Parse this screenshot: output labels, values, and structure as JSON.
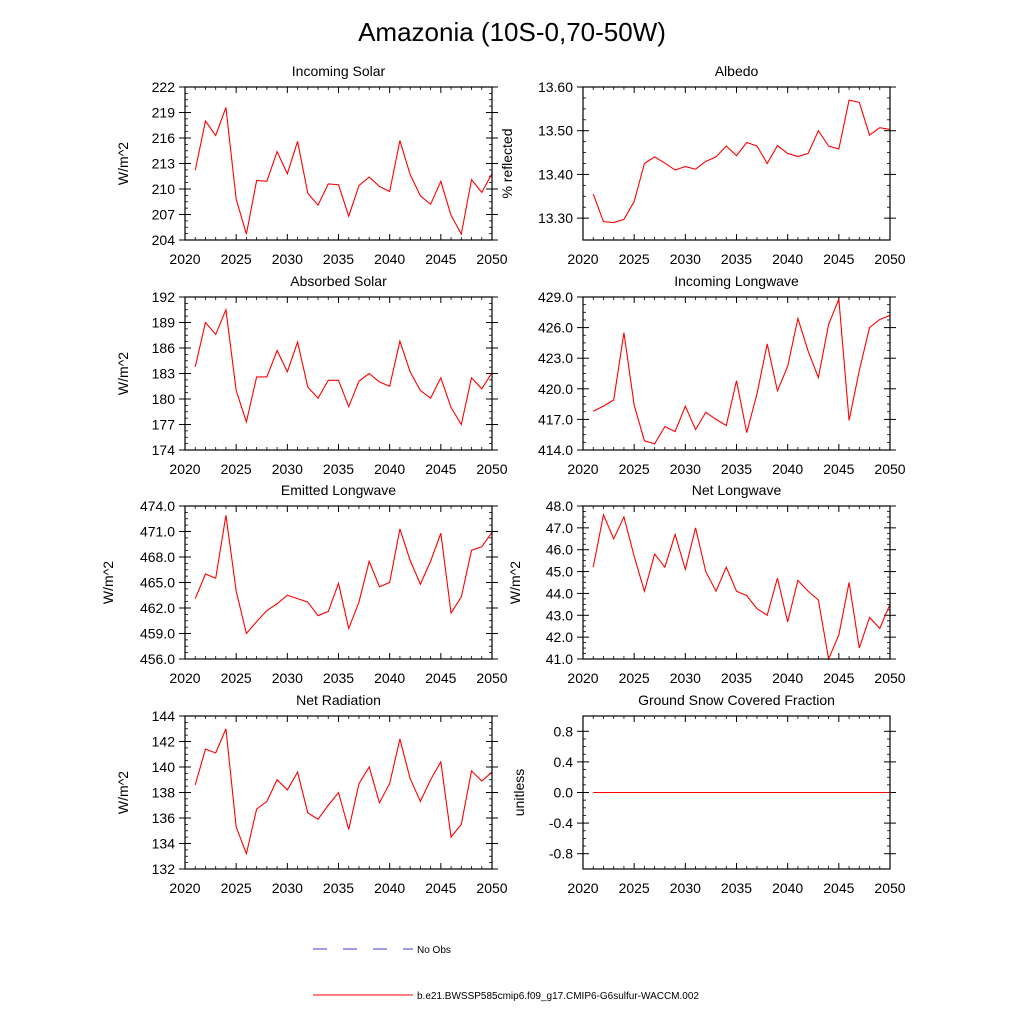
{
  "title": "Amazonia (10S-0,70-50W)",
  "legend": [
    {
      "label": "No Obs",
      "color": "#3b3bd6",
      "style": "dashed"
    },
    {
      "label": "b.e21.BWSSP585cmip6.f09_g17.CMIP6-G6sulfur-WACCM.002",
      "color": "#ff0000",
      "style": "solid"
    }
  ],
  "chart_data": [
    {
      "type": "line",
      "title": "Incoming Solar",
      "ylabel": "W/m^2",
      "xlabel": "",
      "xlim": [
        2020,
        2050
      ],
      "xticks": [
        2020,
        2025,
        2030,
        2035,
        2040,
        2045,
        2050
      ],
      "xtick_labels": [
        "2020",
        "2025",
        "2030",
        "2035",
        "2040",
        "2045",
        "2050"
      ],
      "ylim": [
        204,
        222
      ],
      "yticks": [
        204,
        207,
        210,
        213,
        216,
        219,
        222
      ],
      "ytick_labels": [
        "204",
        "207",
        "210",
        "213",
        "216",
        "219",
        "222"
      ],
      "grid": false,
      "x": [
        2021,
        2022,
        2023,
        2024,
        2025,
        2026,
        2027,
        2028,
        2029,
        2030,
        2031,
        2032,
        2033,
        2034,
        2035,
        2036,
        2037,
        2038,
        2039,
        2040,
        2041,
        2042,
        2043,
        2044,
        2045,
        2046,
        2047,
        2048,
        2049,
        2050
      ],
      "series": [
        {
          "color": "#ff0000",
          "values": [
            212.2,
            218.0,
            216.3,
            219.6,
            208.8,
            204.7,
            211.0,
            210.9,
            214.4,
            211.8,
            215.6,
            209.5,
            208.1,
            210.6,
            210.5,
            206.8,
            210.4,
            211.4,
            210.3,
            209.7,
            215.7,
            211.7,
            209.2,
            208.2,
            210.9,
            206.9,
            204.7,
            211.1,
            209.6,
            211.8
          ]
        }
      ]
    },
    {
      "type": "line",
      "title": "Albedo",
      "ylabel": "% reflected",
      "xlabel": "",
      "xlim": [
        2020,
        2050
      ],
      "xticks": [
        2020,
        2025,
        2030,
        2035,
        2040,
        2045,
        2050
      ],
      "xtick_labels": [
        "2020",
        "2025",
        "2030",
        "2035",
        "2040",
        "2045",
        "2050"
      ],
      "ylim": [
        13.25,
        13.6
      ],
      "yticks": [
        13.3,
        13.4,
        13.5,
        13.6
      ],
      "ytick_labels": [
        "13.30",
        "13.40",
        "13.50",
        "13.60"
      ],
      "grid": false,
      "x": [
        2021,
        2022,
        2023,
        2024,
        2025,
        2026,
        2027,
        2028,
        2029,
        2030,
        2031,
        2032,
        2033,
        2034,
        2035,
        2036,
        2037,
        2038,
        2039,
        2040,
        2041,
        2042,
        2043,
        2044,
        2045,
        2046,
        2047,
        2048,
        2049,
        2050
      ],
      "series": [
        {
          "color": "#ff0000",
          "values": [
            13.355,
            13.292,
            13.29,
            13.297,
            13.338,
            13.425,
            13.44,
            13.426,
            13.41,
            13.418,
            13.412,
            13.43,
            13.44,
            13.465,
            13.443,
            13.473,
            13.465,
            13.425,
            13.466,
            13.448,
            13.441,
            13.448,
            13.5,
            13.465,
            13.458,
            13.57,
            13.565,
            13.49,
            13.507,
            13.503
          ]
        }
      ]
    },
    {
      "type": "line",
      "title": "Absorbed Solar",
      "ylabel": "W/m^2",
      "xlabel": "",
      "xlim": [
        2020,
        2050
      ],
      "xticks": [
        2020,
        2025,
        2030,
        2035,
        2040,
        2045,
        2050
      ],
      "xtick_labels": [
        "2020",
        "2025",
        "2030",
        "2035",
        "2040",
        "2045",
        "2050"
      ],
      "ylim": [
        174,
        192
      ],
      "yticks": [
        174,
        177,
        180,
        183,
        186,
        189,
        192
      ],
      "ytick_labels": [
        "174",
        "177",
        "180",
        "183",
        "186",
        "189",
        "192"
      ],
      "grid": false,
      "x": [
        2021,
        2022,
        2023,
        2024,
        2025,
        2026,
        2027,
        2028,
        2029,
        2030,
        2031,
        2032,
        2033,
        2034,
        2035,
        2036,
        2037,
        2038,
        2039,
        2040,
        2041,
        2042,
        2043,
        2044,
        2045,
        2046,
        2047,
        2048,
        2049,
        2050
      ],
      "series": [
        {
          "color": "#ff0000",
          "values": [
            183.8,
            189.0,
            187.6,
            190.5,
            181.0,
            177.3,
            182.6,
            182.6,
            185.7,
            183.2,
            186.7,
            181.4,
            180.1,
            182.2,
            182.2,
            179.1,
            182.1,
            183.0,
            182.0,
            181.5,
            186.8,
            183.2,
            181.0,
            180.1,
            182.5,
            179.0,
            177.0,
            182.5,
            181.2,
            183.1
          ]
        }
      ]
    },
    {
      "type": "line",
      "title": "Incoming Longwave",
      "ylabel": "",
      "xlabel": "",
      "xlim": [
        2020,
        2050
      ],
      "xticks": [
        2020,
        2025,
        2030,
        2035,
        2040,
        2045,
        2050
      ],
      "xtick_labels": [
        "2020",
        "2025",
        "2030",
        "2035",
        "2040",
        "2045",
        "2050"
      ],
      "ylim": [
        414,
        429
      ],
      "yticks": [
        414,
        417,
        420,
        423,
        426,
        429
      ],
      "ytick_labels": [
        "414.0",
        "417.0",
        "420.0",
        "423.0",
        "426.0",
        "429.0"
      ],
      "grid": false,
      "x": [
        2021,
        2022,
        2023,
        2024,
        2025,
        2026,
        2027,
        2028,
        2029,
        2030,
        2031,
        2032,
        2033,
        2034,
        2035,
        2036,
        2037,
        2038,
        2039,
        2040,
        2041,
        2042,
        2043,
        2044,
        2045,
        2046,
        2047,
        2048,
        2049,
        2050
      ],
      "series": [
        {
          "color": "#ff0000",
          "values": [
            417.8,
            418.3,
            418.9,
            425.5,
            418.4,
            414.9,
            414.6,
            416.3,
            415.8,
            418.3,
            416.0,
            417.7,
            417.0,
            416.4,
            420.8,
            415.7,
            419.5,
            424.4,
            419.8,
            422.2,
            426.9,
            423.7,
            421.1,
            426.3,
            428.8,
            416.9,
            421.8,
            426.0,
            426.8,
            427.2
          ]
        }
      ]
    },
    {
      "type": "line",
      "title": "Emitted Longwave",
      "ylabel": "W/m^2",
      "xlabel": "",
      "xlim": [
        2020,
        2050
      ],
      "xticks": [
        2020,
        2025,
        2030,
        2035,
        2040,
        2045,
        2050
      ],
      "xtick_labels": [
        "2020",
        "2025",
        "2030",
        "2035",
        "2040",
        "2045",
        "2050"
      ],
      "ylim": [
        456,
        474
      ],
      "yticks": [
        456,
        459,
        462,
        465,
        468,
        471,
        474
      ],
      "ytick_labels": [
        "456.0",
        "459.0",
        "462.0",
        "465.0",
        "468.0",
        "471.0",
        "474.0"
      ],
      "grid": false,
      "x": [
        2021,
        2022,
        2023,
        2024,
        2025,
        2026,
        2027,
        2028,
        2029,
        2030,
        2031,
        2032,
        2033,
        2034,
        2035,
        2036,
        2037,
        2038,
        2039,
        2040,
        2041,
        2042,
        2043,
        2044,
        2045,
        2046,
        2047,
        2048,
        2049,
        2050
      ],
      "series": [
        {
          "color": "#ff0000",
          "values": [
            463.1,
            466.0,
            465.5,
            472.9,
            464.0,
            459.0,
            460.4,
            461.7,
            462.5,
            463.5,
            463.1,
            462.7,
            461.1,
            461.6,
            464.9,
            459.6,
            462.7,
            467.5,
            464.5,
            465.0,
            471.3,
            467.6,
            464.8,
            467.5,
            470.8,
            461.4,
            463.3,
            468.8,
            469.2,
            470.9
          ]
        }
      ]
    },
    {
      "type": "line",
      "title": "Net Longwave",
      "ylabel": "W/m^2",
      "xlabel": "",
      "xlim": [
        2020,
        2050
      ],
      "xticks": [
        2020,
        2025,
        2030,
        2035,
        2040,
        2045,
        2050
      ],
      "xtick_labels": [
        "2020",
        "2025",
        "2030",
        "2035",
        "2040",
        "2045",
        "2050"
      ],
      "ylim": [
        41,
        48
      ],
      "yticks": [
        41,
        42,
        43,
        44,
        45,
        46,
        47,
        48
      ],
      "ytick_labels": [
        "41.0",
        "42.0",
        "43.0",
        "44.0",
        "45.0",
        "46.0",
        "47.0",
        "48.0"
      ],
      "grid": false,
      "x": [
        2021,
        2022,
        2023,
        2024,
        2025,
        2026,
        2027,
        2028,
        2029,
        2030,
        2031,
        2032,
        2033,
        2034,
        2035,
        2036,
        2037,
        2038,
        2039,
        2040,
        2041,
        2042,
        2043,
        2044,
        2045,
        2046,
        2047,
        2048,
        2049,
        2050
      ],
      "series": [
        {
          "color": "#ff0000",
          "values": [
            45.2,
            47.6,
            46.5,
            47.5,
            45.7,
            44.1,
            45.8,
            45.2,
            46.7,
            45.1,
            47.0,
            45.0,
            44.1,
            45.2,
            44.1,
            43.9,
            43.3,
            43.0,
            44.7,
            42.7,
            44.6,
            44.1,
            43.7,
            41.0,
            42.1,
            44.5,
            41.5,
            42.9,
            42.4,
            43.5
          ]
        }
      ]
    },
    {
      "type": "line",
      "title": "Net Radiation",
      "ylabel": "W/m^2",
      "xlabel": "",
      "xlim": [
        2020,
        2050
      ],
      "xticks": [
        2020,
        2025,
        2030,
        2035,
        2040,
        2045,
        2050
      ],
      "xtick_labels": [
        "2020",
        "2025",
        "2030",
        "2035",
        "2040",
        "2045",
        "2050"
      ],
      "ylim": [
        132,
        144
      ],
      "yticks": [
        132,
        134,
        136,
        138,
        140,
        142,
        144
      ],
      "ytick_labels": [
        "132",
        "134",
        "136",
        "138",
        "140",
        "142",
        "144"
      ],
      "grid": false,
      "x": [
        2021,
        2022,
        2023,
        2024,
        2025,
        2026,
        2027,
        2028,
        2029,
        2030,
        2031,
        2032,
        2033,
        2034,
        2035,
        2036,
        2037,
        2038,
        2039,
        2040,
        2041,
        2042,
        2043,
        2044,
        2045,
        2046,
        2047,
        2048,
        2049,
        2050
      ],
      "series": [
        {
          "color": "#ff0000",
          "values": [
            138.6,
            141.4,
            141.1,
            143.0,
            135.3,
            133.2,
            136.7,
            137.3,
            139.0,
            138.2,
            139.6,
            136.4,
            135.9,
            137.0,
            138.0,
            135.1,
            138.7,
            140.0,
            137.2,
            138.7,
            142.2,
            139.1,
            137.3,
            139.0,
            140.4,
            134.5,
            135.5,
            139.7,
            138.9,
            139.6
          ]
        }
      ]
    },
    {
      "type": "line",
      "title": "Ground Snow Covered Fraction",
      "ylabel": "unitless",
      "xlabel": "",
      "xlim": [
        2020,
        2050
      ],
      "xticks": [
        2020,
        2025,
        2030,
        2035,
        2040,
        2045,
        2050
      ],
      "xtick_labels": [
        "2020",
        "2025",
        "2030",
        "2035",
        "2040",
        "2045",
        "2050"
      ],
      "ylim": [
        -1.0,
        1.0
      ],
      "yticks": [
        -0.8,
        -0.4,
        0.0,
        0.4,
        0.8
      ],
      "ytick_labels": [
        "-0.8",
        "-0.4",
        "0.0",
        "0.4",
        "0.8"
      ],
      "grid": false,
      "x": [
        2021,
        2022,
        2023,
        2024,
        2025,
        2026,
        2027,
        2028,
        2029,
        2030,
        2031,
        2032,
        2033,
        2034,
        2035,
        2036,
        2037,
        2038,
        2039,
        2040,
        2041,
        2042,
        2043,
        2044,
        2045,
        2046,
        2047,
        2048,
        2049,
        2050
      ],
      "series": [
        {
          "color": "#ff0000",
          "values": [
            0,
            0,
            0,
            0,
            0,
            0,
            0,
            0,
            0,
            0,
            0,
            0,
            0,
            0,
            0,
            0,
            0,
            0,
            0,
            0,
            0,
            0,
            0,
            0,
            0,
            0,
            0,
            0,
            0,
            0
          ]
        }
      ]
    }
  ]
}
